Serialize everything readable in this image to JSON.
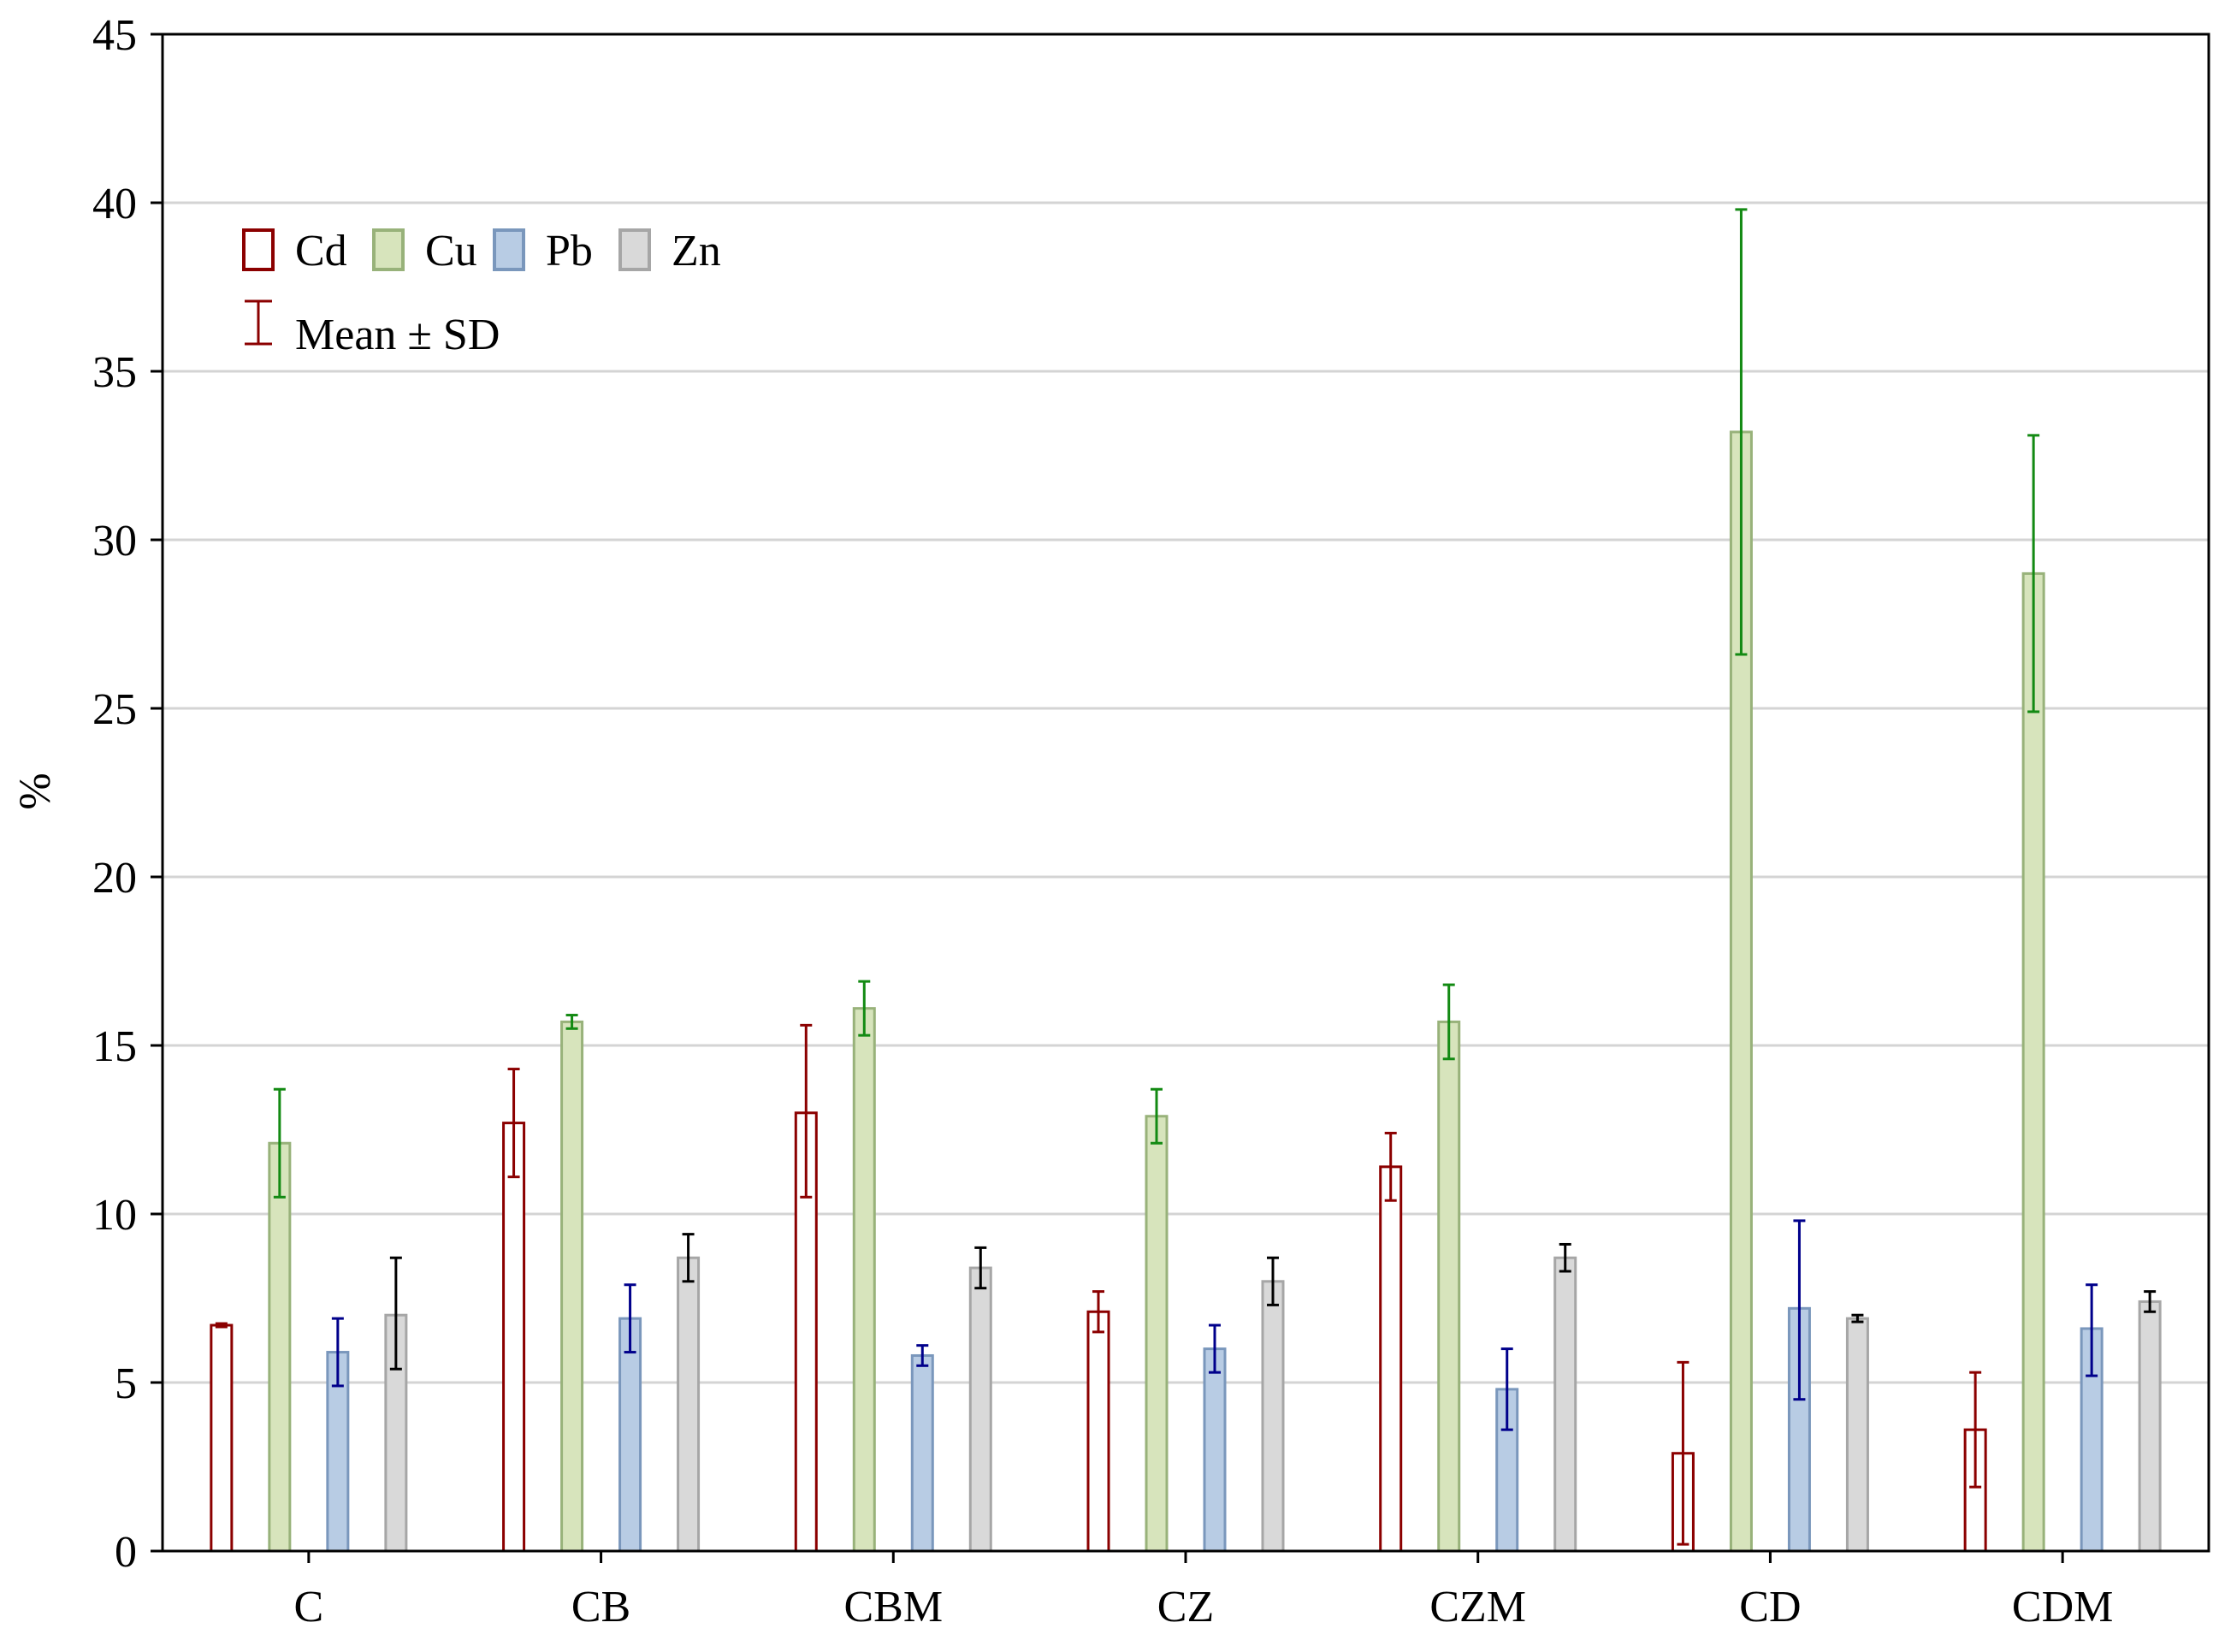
{
  "chart_data": {
    "type": "bar",
    "title": "",
    "xlabel": "",
    "ylabel": "%",
    "ylim": [
      0,
      45
    ],
    "yticks": [
      0,
      5,
      10,
      15,
      20,
      25,
      30,
      35,
      40,
      45
    ],
    "grid": true,
    "legend_position": "top-left",
    "error_bar_label": "Mean ± SD",
    "categories": [
      "C",
      "CB",
      "CBM",
      "CZ",
      "CZM",
      "CD",
      "CDM"
    ],
    "series": [
      {
        "name": "Cd",
        "fill": "#ffffff",
        "stroke": "#8b0000",
        "err_color": "#8b0000",
        "values": [
          6.7,
          12.7,
          13.0,
          7.1,
          11.4,
          2.9,
          3.6
        ],
        "err_low": [
          6.65,
          11.1,
          10.5,
          6.5,
          10.4,
          0.2,
          1.9
        ],
        "err_high": [
          6.75,
          14.3,
          15.6,
          7.7,
          12.4,
          5.6,
          5.3
        ]
      },
      {
        "name": "Cu",
        "fill": "#d7e4bc",
        "stroke": "#98b27a",
        "err_color": "#138a13",
        "values": [
          12.1,
          15.7,
          16.1,
          12.9,
          15.7,
          33.2,
          29.0
        ],
        "err_low": [
          10.5,
          15.5,
          15.3,
          12.1,
          14.6,
          26.6,
          24.9
        ],
        "err_high": [
          13.7,
          15.9,
          16.9,
          13.7,
          16.8,
          39.8,
          33.1
        ]
      },
      {
        "name": "Pb",
        "fill": "#b8cce4",
        "stroke": "#7a97bc",
        "err_color": "#00008b",
        "values": [
          5.9,
          6.9,
          5.8,
          6.0,
          4.8,
          7.2,
          6.6
        ],
        "err_low": [
          4.9,
          5.9,
          5.5,
          5.3,
          3.6,
          4.5,
          5.2
        ],
        "err_high": [
          6.9,
          7.9,
          6.1,
          6.7,
          6.0,
          9.8,
          7.9
        ]
      },
      {
        "name": "Zn",
        "fill": "#d9d9d9",
        "stroke": "#a6a6a6",
        "err_color": "#000000",
        "values": [
          7.0,
          8.7,
          8.4,
          8.0,
          8.7,
          6.9,
          7.4
        ],
        "err_low": [
          5.4,
          8.0,
          7.8,
          7.3,
          8.3,
          6.8,
          7.1
        ],
        "err_high": [
          8.7,
          9.4,
          9.0,
          8.7,
          9.1,
          7.0,
          7.7
        ]
      }
    ]
  }
}
